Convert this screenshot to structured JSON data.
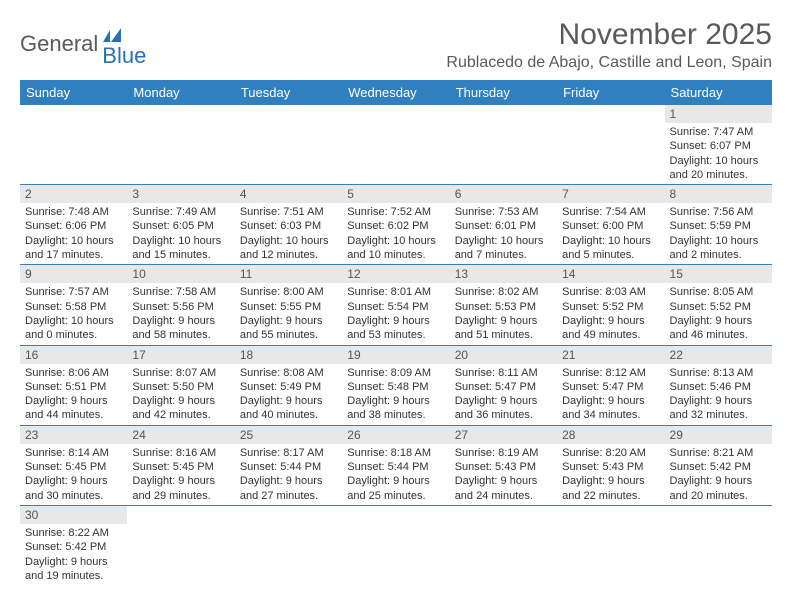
{
  "logo": {
    "text1": "General",
    "text2": "Blue"
  },
  "title": "November 2025",
  "location": "Rublacedo de Abajo, Castille and Leon, Spain",
  "colors": {
    "header_bg": "#3080c0",
    "header_text": "#ffffff",
    "daynum_bg": "#e8e8e8",
    "border": "#3080c0",
    "logo_gray": "#5a5a5a",
    "logo_blue": "#2a70b8"
  },
  "weekdays": [
    "Sunday",
    "Monday",
    "Tuesday",
    "Wednesday",
    "Thursday",
    "Friday",
    "Saturday"
  ],
  "grid": [
    [
      null,
      null,
      null,
      null,
      null,
      null,
      {
        "n": "1",
        "sr": "Sunrise: 7:47 AM",
        "ss": "Sunset: 6:07 PM",
        "dl": "Daylight: 10 hours and 20 minutes."
      }
    ],
    [
      {
        "n": "2",
        "sr": "Sunrise: 7:48 AM",
        "ss": "Sunset: 6:06 PM",
        "dl": "Daylight: 10 hours and 17 minutes."
      },
      {
        "n": "3",
        "sr": "Sunrise: 7:49 AM",
        "ss": "Sunset: 6:05 PM",
        "dl": "Daylight: 10 hours and 15 minutes."
      },
      {
        "n": "4",
        "sr": "Sunrise: 7:51 AM",
        "ss": "Sunset: 6:03 PM",
        "dl": "Daylight: 10 hours and 12 minutes."
      },
      {
        "n": "5",
        "sr": "Sunrise: 7:52 AM",
        "ss": "Sunset: 6:02 PM",
        "dl": "Daylight: 10 hours and 10 minutes."
      },
      {
        "n": "6",
        "sr": "Sunrise: 7:53 AM",
        "ss": "Sunset: 6:01 PM",
        "dl": "Daylight: 10 hours and 7 minutes."
      },
      {
        "n": "7",
        "sr": "Sunrise: 7:54 AM",
        "ss": "Sunset: 6:00 PM",
        "dl": "Daylight: 10 hours and 5 minutes."
      },
      {
        "n": "8",
        "sr": "Sunrise: 7:56 AM",
        "ss": "Sunset: 5:59 PM",
        "dl": "Daylight: 10 hours and 2 minutes."
      }
    ],
    [
      {
        "n": "9",
        "sr": "Sunrise: 7:57 AM",
        "ss": "Sunset: 5:58 PM",
        "dl": "Daylight: 10 hours and 0 minutes."
      },
      {
        "n": "10",
        "sr": "Sunrise: 7:58 AM",
        "ss": "Sunset: 5:56 PM",
        "dl": "Daylight: 9 hours and 58 minutes."
      },
      {
        "n": "11",
        "sr": "Sunrise: 8:00 AM",
        "ss": "Sunset: 5:55 PM",
        "dl": "Daylight: 9 hours and 55 minutes."
      },
      {
        "n": "12",
        "sr": "Sunrise: 8:01 AM",
        "ss": "Sunset: 5:54 PM",
        "dl": "Daylight: 9 hours and 53 minutes."
      },
      {
        "n": "13",
        "sr": "Sunrise: 8:02 AM",
        "ss": "Sunset: 5:53 PM",
        "dl": "Daylight: 9 hours and 51 minutes."
      },
      {
        "n": "14",
        "sr": "Sunrise: 8:03 AM",
        "ss": "Sunset: 5:52 PM",
        "dl": "Daylight: 9 hours and 49 minutes."
      },
      {
        "n": "15",
        "sr": "Sunrise: 8:05 AM",
        "ss": "Sunset: 5:52 PM",
        "dl": "Daylight: 9 hours and 46 minutes."
      }
    ],
    [
      {
        "n": "16",
        "sr": "Sunrise: 8:06 AM",
        "ss": "Sunset: 5:51 PM",
        "dl": "Daylight: 9 hours and 44 minutes."
      },
      {
        "n": "17",
        "sr": "Sunrise: 8:07 AM",
        "ss": "Sunset: 5:50 PM",
        "dl": "Daylight: 9 hours and 42 minutes."
      },
      {
        "n": "18",
        "sr": "Sunrise: 8:08 AM",
        "ss": "Sunset: 5:49 PM",
        "dl": "Daylight: 9 hours and 40 minutes."
      },
      {
        "n": "19",
        "sr": "Sunrise: 8:09 AM",
        "ss": "Sunset: 5:48 PM",
        "dl": "Daylight: 9 hours and 38 minutes."
      },
      {
        "n": "20",
        "sr": "Sunrise: 8:11 AM",
        "ss": "Sunset: 5:47 PM",
        "dl": "Daylight: 9 hours and 36 minutes."
      },
      {
        "n": "21",
        "sr": "Sunrise: 8:12 AM",
        "ss": "Sunset: 5:47 PM",
        "dl": "Daylight: 9 hours and 34 minutes."
      },
      {
        "n": "22",
        "sr": "Sunrise: 8:13 AM",
        "ss": "Sunset: 5:46 PM",
        "dl": "Daylight: 9 hours and 32 minutes."
      }
    ],
    [
      {
        "n": "23",
        "sr": "Sunrise: 8:14 AM",
        "ss": "Sunset: 5:45 PM",
        "dl": "Daylight: 9 hours and 30 minutes."
      },
      {
        "n": "24",
        "sr": "Sunrise: 8:16 AM",
        "ss": "Sunset: 5:45 PM",
        "dl": "Daylight: 9 hours and 29 minutes."
      },
      {
        "n": "25",
        "sr": "Sunrise: 8:17 AM",
        "ss": "Sunset: 5:44 PM",
        "dl": "Daylight: 9 hours and 27 minutes."
      },
      {
        "n": "26",
        "sr": "Sunrise: 8:18 AM",
        "ss": "Sunset: 5:44 PM",
        "dl": "Daylight: 9 hours and 25 minutes."
      },
      {
        "n": "27",
        "sr": "Sunrise: 8:19 AM",
        "ss": "Sunset: 5:43 PM",
        "dl": "Daylight: 9 hours and 24 minutes."
      },
      {
        "n": "28",
        "sr": "Sunrise: 8:20 AM",
        "ss": "Sunset: 5:43 PM",
        "dl": "Daylight: 9 hours and 22 minutes."
      },
      {
        "n": "29",
        "sr": "Sunrise: 8:21 AM",
        "ss": "Sunset: 5:42 PM",
        "dl": "Daylight: 9 hours and 20 minutes."
      }
    ],
    [
      {
        "n": "30",
        "sr": "Sunrise: 8:22 AM",
        "ss": "Sunset: 5:42 PM",
        "dl": "Daylight: 9 hours and 19 minutes."
      },
      null,
      null,
      null,
      null,
      null,
      null
    ]
  ]
}
